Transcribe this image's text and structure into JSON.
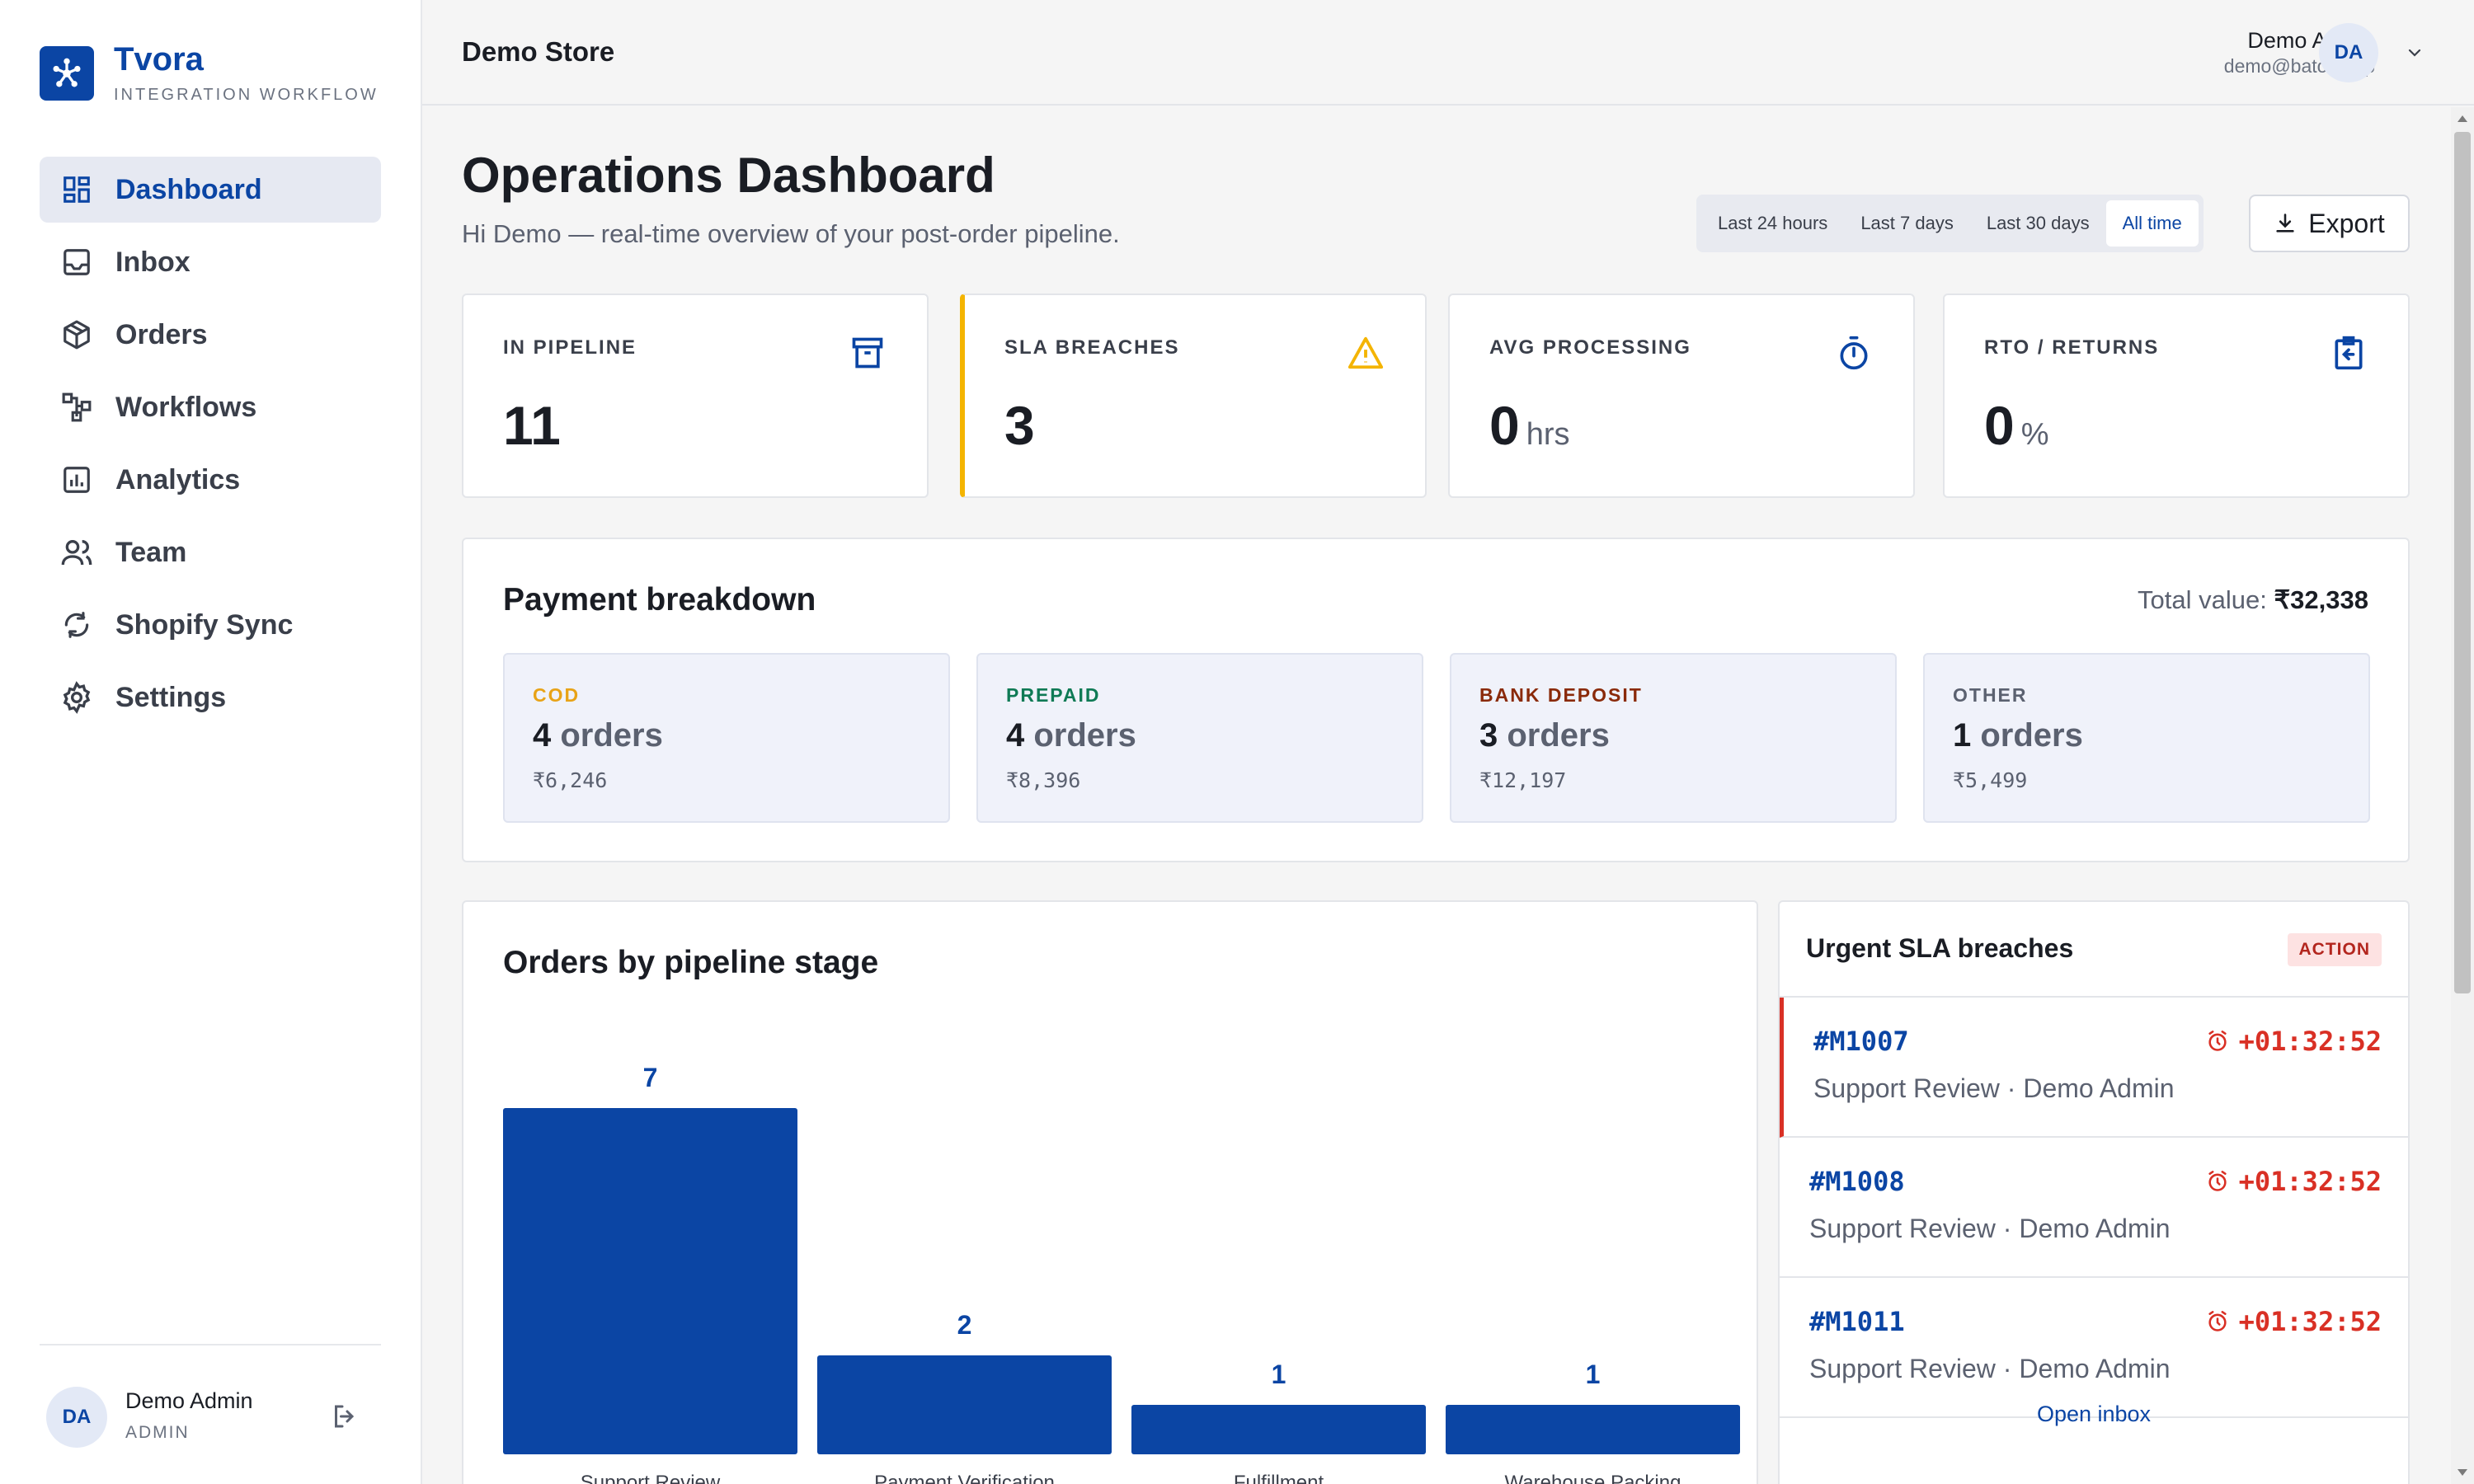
{
  "brand": {
    "name": "Tvora",
    "subtitle": "INTEGRATION WORKFLOW"
  },
  "sidebar": {
    "items": [
      {
        "label": "Dashboard",
        "icon": "dashboard-icon",
        "active": true
      },
      {
        "label": "Inbox",
        "icon": "inbox-icon"
      },
      {
        "label": "Orders",
        "icon": "package-icon"
      },
      {
        "label": "Workflows",
        "icon": "workflow-icon"
      },
      {
        "label": "Analytics",
        "icon": "analytics-icon"
      },
      {
        "label": "Team",
        "icon": "team-icon"
      },
      {
        "label": "Shopify Sync",
        "icon": "sync-icon"
      },
      {
        "label": "Settings",
        "icon": "gear-icon"
      }
    ],
    "user": {
      "initials": "DA",
      "name": "Demo Admin",
      "role": "ADMIN"
    }
  },
  "topbar": {
    "store": "Demo Store",
    "user_name": "Demo Admin",
    "user_email": "demo@baton.app",
    "initials": "DA"
  },
  "page": {
    "title": "Operations Dashboard",
    "subtitle": "Hi Demo — real-time overview of your post-order pipeline.",
    "ranges": [
      "Last 24 hours",
      "Last 7 days",
      "Last 30 days",
      "All time"
    ],
    "active_range": "All time",
    "export_label": "Export"
  },
  "kpis": [
    {
      "label": "IN PIPELINE",
      "value": "11",
      "unit": "",
      "icon": "archive-icon"
    },
    {
      "label": "SLA BREACHES",
      "value": "3",
      "unit": "",
      "icon": "warning-icon"
    },
    {
      "label": "AVG PROCESSING",
      "value": "0",
      "unit": "hrs",
      "icon": "stopwatch-icon"
    },
    {
      "label": "RTO / RETURNS",
      "value": "0",
      "unit": "%",
      "icon": "return-clipboard-icon"
    }
  ],
  "payment": {
    "title": "Payment breakdown",
    "total_label": "Total value:",
    "total_value": "₹32,338",
    "boxes": [
      {
        "label": "COD",
        "count": "4",
        "unit": "orders",
        "amount": "₹6,246",
        "color": "#e8a317"
      },
      {
        "label": "PREPAID",
        "count": "4",
        "unit": "orders",
        "amount": "₹8,396",
        "color": "#0f7a55"
      },
      {
        "label": "BANK DEPOSIT",
        "count": "3",
        "unit": "orders",
        "amount": "₹12,197",
        "color": "#8a2a0a"
      },
      {
        "label": "OTHER",
        "count": "1",
        "unit": "orders",
        "amount": "₹5,499",
        "color": "#5b6170"
      }
    ]
  },
  "chart_data": {
    "type": "bar",
    "title": "Orders by pipeline stage",
    "categories": [
      "Support Review",
      "Payment Verification",
      "Fulfillment",
      "Warehouse Packing"
    ],
    "values": [
      7,
      2,
      1,
      1
    ],
    "color": "#0b45a4"
  },
  "urgent": {
    "title": "Urgent SLA breaches",
    "badge": "ACTION",
    "items": [
      {
        "id": "#M1007",
        "time": "+01:32:52",
        "meta": "Support Review · Demo Admin"
      },
      {
        "id": "#M1008",
        "time": "+01:32:52",
        "meta": "Support Review · Demo Admin"
      },
      {
        "id": "#M1011",
        "time": "+01:32:52",
        "meta": "Support Review · Demo Admin"
      }
    ],
    "footer_link": "Open inbox"
  },
  "colors": {
    "accent": "#0b45a4",
    "warning": "#f4b400",
    "danger": "#d93025"
  }
}
